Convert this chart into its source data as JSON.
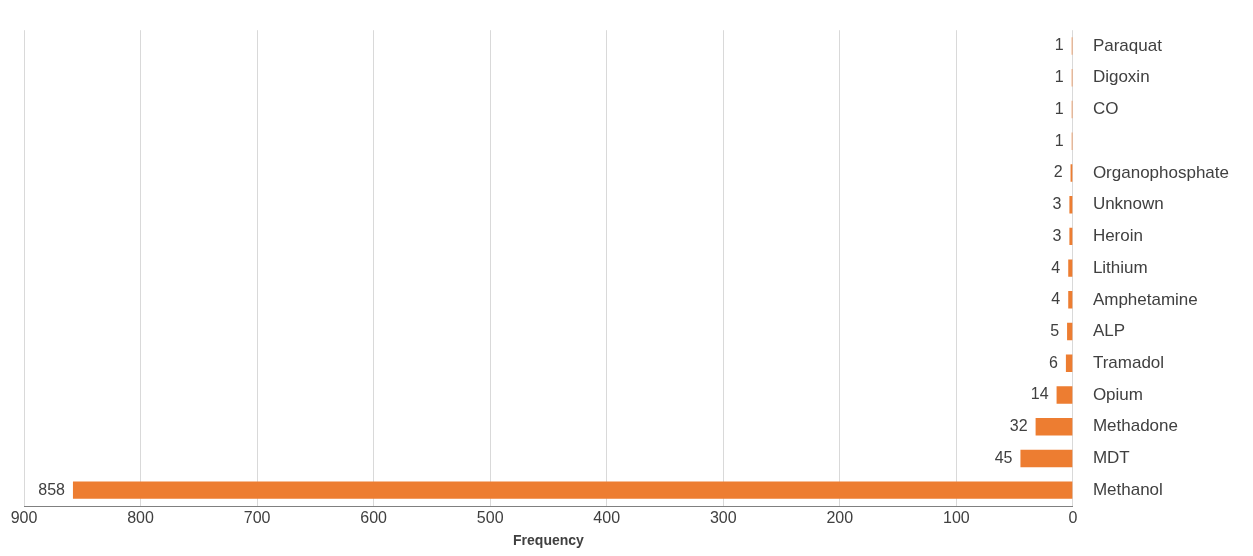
{
  "chart_data": {
    "type": "bar",
    "orientation": "horizontal",
    "xlabel": "Frequency",
    "categories": [
      "Paraquat",
      "Digoxin",
      "CO",
      null,
      "Organophosphate",
      "Unknown",
      "Heroin",
      "Lithium",
      "Amphetamine",
      "ALP",
      "Tramadol",
      "Opium",
      "Methadone",
      "MDT",
      "Methanol"
    ],
    "values": [
      1,
      1,
      1,
      1,
      2,
      3,
      3,
      4,
      4,
      5,
      6,
      14,
      32,
      45,
      858
    ],
    "color": "#ed7d31",
    "xlim": [
      900,
      0
    ],
    "xticks": [
      0,
      100,
      200,
      300,
      400,
      500,
      600,
      700,
      800,
      900
    ],
    "grid": "x",
    "data_labels": true,
    "legend": false
  }
}
